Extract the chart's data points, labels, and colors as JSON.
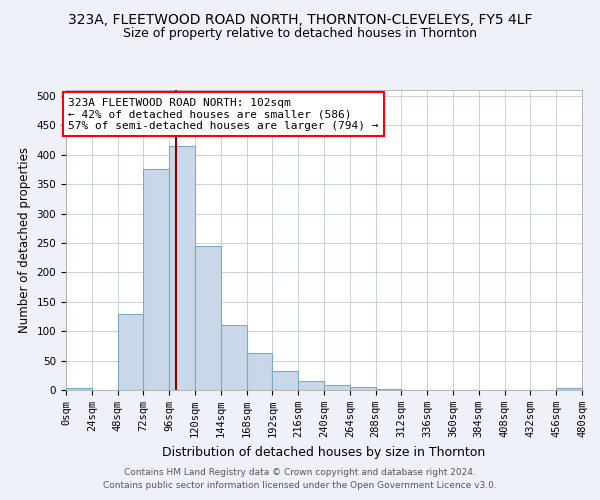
{
  "title": "323A, FLEETWOOD ROAD NORTH, THORNTON-CLEVELEYS, FY5 4LF",
  "subtitle": "Size of property relative to detached houses in Thornton",
  "xlabel": "Distribution of detached houses by size in Thornton",
  "ylabel": "Number of detached properties",
  "footer1": "Contains HM Land Registry data © Crown copyright and database right 2024.",
  "footer2": "Contains public sector information licensed under the Open Government Licence v3.0.",
  "bin_edges": [
    0,
    24,
    48,
    72,
    96,
    120,
    144,
    168,
    192,
    216,
    240,
    264,
    288,
    312,
    336,
    360,
    384,
    408,
    432,
    456,
    480
  ],
  "bar_heights": [
    3,
    0,
    130,
    375,
    415,
    245,
    110,
    63,
    33,
    15,
    8,
    5,
    2,
    0,
    0,
    0,
    0,
    0,
    0,
    3
  ],
  "bar_color": "#c8d8e8",
  "bar_edgecolor": "#7aaac8",
  "marker_x": 102,
  "marker_color": "#8b0000",
  "annotation_text": "323A FLEETWOOD ROAD NORTH: 102sqm\n← 42% of detached houses are smaller (586)\n57% of semi-detached houses are larger (794) →",
  "annotation_box_color": "white",
  "annotation_box_edgecolor": "red",
  "ylim": [
    0,
    510
  ],
  "xlim": [
    0,
    480
  ],
  "background_color": "#eef2f8",
  "plot_bg_color": "white",
  "title_fontsize": 10,
  "subtitle_fontsize": 9,
  "xlabel_fontsize": 9,
  "ylabel_fontsize": 8.5,
  "tick_fontsize": 7.5,
  "annotation_fontsize": 8,
  "footer_fontsize": 6.5
}
